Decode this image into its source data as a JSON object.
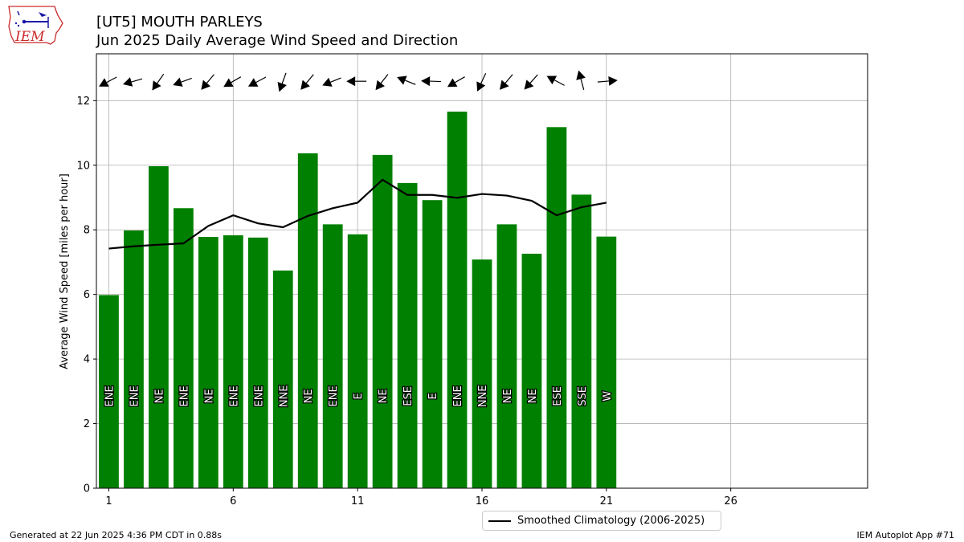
{
  "header": {
    "title": "[UT5] MOUTH PARLEYS",
    "subtitle": "Jun 2025 Daily Average Wind Speed and Direction",
    "logo_text": "IEM"
  },
  "footer": {
    "generated": "Generated at 22 Jun 2025 4:36 PM CDT in 0.88s",
    "app": "IEM Autoplot App #71"
  },
  "chart_data": {
    "type": "bar",
    "ylabel": "Average Wind Speed [miles per hour]",
    "xlabel": "",
    "xlim": [
      0.5,
      31.5
    ],
    "ylim": [
      0,
      13.45
    ],
    "xticks": [
      1,
      6,
      11,
      16,
      21,
      26
    ],
    "yticks": [
      0,
      2,
      4,
      6,
      8,
      10,
      12
    ],
    "grid": true,
    "legend_position": "bottom-center",
    "bar_color": "#008000",
    "days": [
      1,
      2,
      3,
      4,
      5,
      6,
      7,
      8,
      9,
      10,
      11,
      12,
      13,
      14,
      15,
      16,
      17,
      18,
      19,
      20,
      21
    ],
    "speed": [
      5.98,
      7.98,
      9.97,
      8.67,
      7.78,
      7.83,
      7.76,
      6.74,
      10.37,
      8.17,
      7.86,
      10.32,
      9.45,
      8.92,
      11.66,
      7.08,
      8.17,
      7.26,
      11.18,
      9.09,
      7.79
    ],
    "direction_labels": [
      "ENE",
      "ENE",
      "NE",
      "ENE",
      "NE",
      "ENE",
      "ENE",
      "NNE",
      "NE",
      "ENE",
      "E",
      "NE",
      "ESE",
      "E",
      "ENE",
      "NNE",
      "NE",
      "NE",
      "ESE",
      "SSE",
      "W"
    ],
    "direction_degrees": [
      62,
      74,
      35,
      70,
      40,
      60,
      62,
      20,
      40,
      68,
      90,
      38,
      112,
      92,
      60,
      25,
      40,
      42,
      118,
      165,
      265
    ],
    "series": [
      {
        "name": "Smoothed Climatology (2006-2025)",
        "values": [
          7.42,
          7.49,
          7.54,
          7.58,
          8.12,
          8.45,
          8.2,
          8.08,
          8.43,
          8.67,
          8.84,
          9.55,
          9.08,
          9.08,
          8.99,
          9.11,
          9.06,
          8.9,
          8.45,
          8.7,
          8.84
        ]
      }
    ]
  }
}
